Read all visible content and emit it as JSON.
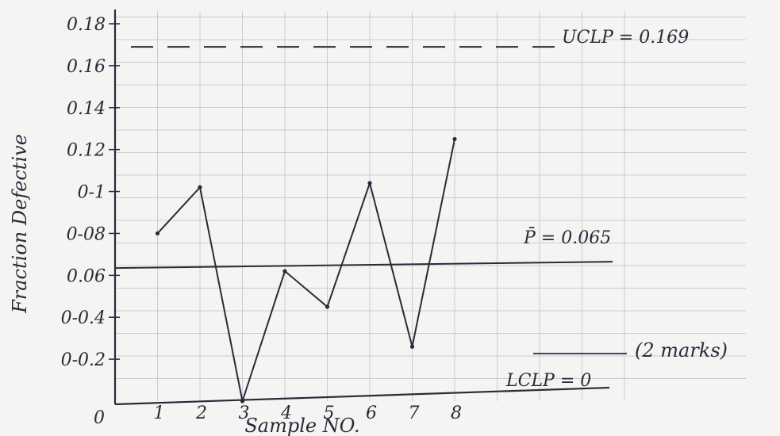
{
  "chart_data": {
    "type": "line",
    "x": [
      1,
      2,
      3,
      4,
      5,
      6,
      7,
      8
    ],
    "series": [
      {
        "values": [
          0.08,
          0.102,
          0.0,
          0.062,
          0.045,
          0.104,
          0.026,
          0.125
        ]
      }
    ],
    "xlabel": "Sample NO.",
    "ylabel": "Fraction Defective",
    "x_tick_labels": [
      "1",
      "2",
      "3",
      "4",
      "5",
      "6",
      "7",
      "8"
    ],
    "y_tick_labels": [
      "0",
      "0-0.2",
      "0-0.4",
      "0.06",
      "0-08",
      "0-1",
      "0.12",
      "0.14",
      "0.16",
      "0.18"
    ],
    "y_tick_values": [
      0,
      0.02,
      0.04,
      0.06,
      0.08,
      0.1,
      0.12,
      0.14,
      0.16,
      0.18
    ],
    "ylim": [
      0,
      0.18
    ],
    "xlim": [
      0,
      8.5
    ],
    "grid": true,
    "reference_lines": [
      {
        "label": "UCLP = 0.169",
        "value": 0.169,
        "style": "dashed"
      },
      {
        "label": "P̄ = 0.065",
        "value": 0.065,
        "style": "solid"
      },
      {
        "label": "LCLP = 0",
        "value": 0,
        "style": "none"
      }
    ],
    "annotations": [
      "(2 marks)"
    ],
    "colors": {
      "ink": "#2a2a3a",
      "grid": "#c8ccd6",
      "paper": "#f4f4f2"
    }
  }
}
